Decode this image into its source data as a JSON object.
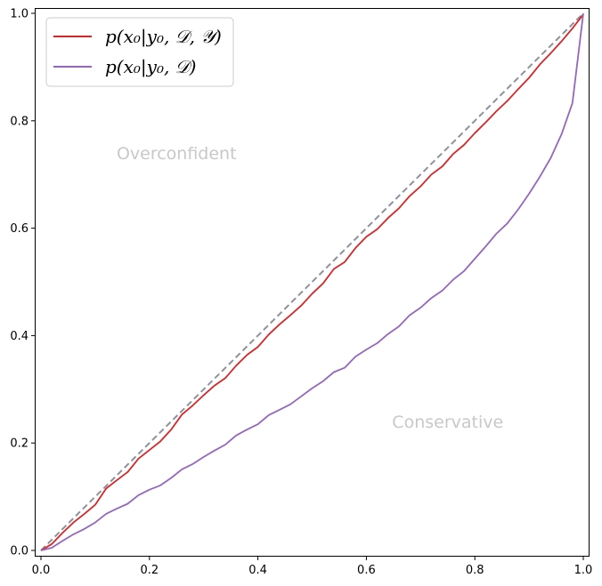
{
  "chart_data": {
    "type": "line",
    "xlim": [
      0.0,
      1.0
    ],
    "ylim": [
      0.0,
      1.0
    ],
    "grid": false,
    "legend_position": "top-left",
    "x_ticks": [
      "0.0",
      "0.2",
      "0.4",
      "0.6",
      "0.8",
      "1.0"
    ],
    "y_ticks": [
      "0.0",
      "0.2",
      "0.4",
      "0.6",
      "0.8",
      "1.0"
    ],
    "annotations": [
      {
        "text": "Overconfident",
        "x": 0.25,
        "y": 0.74
      },
      {
        "text": "Conservative",
        "x": 0.75,
        "y": 0.24
      }
    ],
    "reference_line": {
      "x": [
        0.0,
        1.0
      ],
      "y": [
        0.0,
        1.0
      ],
      "color": "#8c939b",
      "style": "dashed"
    },
    "x": [
      0.0,
      0.02,
      0.04,
      0.06,
      0.08,
      0.1,
      0.12,
      0.14,
      0.16,
      0.18,
      0.2,
      0.22,
      0.24,
      0.26,
      0.28,
      0.3,
      0.32,
      0.34,
      0.36,
      0.38,
      0.4,
      0.42,
      0.44,
      0.46,
      0.48,
      0.5,
      0.52,
      0.54,
      0.56,
      0.58,
      0.6,
      0.62,
      0.64,
      0.66,
      0.68,
      0.7,
      0.72,
      0.74,
      0.76,
      0.78,
      0.8,
      0.82,
      0.84,
      0.86,
      0.88,
      0.9,
      0.92,
      0.94,
      0.96,
      0.98,
      1.0
    ],
    "series": [
      {
        "name": "p(x₀|y₀, 𝒟, 𝒴)",
        "color": "#d62728",
        "values": [
          0.0,
          0.012,
          0.033,
          0.052,
          0.068,
          0.085,
          0.115,
          0.131,
          0.146,
          0.171,
          0.187,
          0.203,
          0.225,
          0.253,
          0.27,
          0.289,
          0.307,
          0.321,
          0.344,
          0.364,
          0.379,
          0.402,
          0.421,
          0.438,
          0.456,
          0.478,
          0.497,
          0.524,
          0.537,
          0.563,
          0.584,
          0.598,
          0.619,
          0.637,
          0.66,
          0.678,
          0.7,
          0.715,
          0.738,
          0.755,
          0.777,
          0.797,
          0.818,
          0.837,
          0.859,
          0.88,
          0.905,
          0.926,
          0.948,
          0.972,
          0.998
        ]
      },
      {
        "name": "p(x₀|y₀, 𝒟)",
        "color": "#9467bd",
        "values": [
          0.0,
          0.005,
          0.018,
          0.03,
          0.04,
          0.052,
          0.068,
          0.078,
          0.087,
          0.103,
          0.113,
          0.121,
          0.135,
          0.151,
          0.161,
          0.174,
          0.186,
          0.197,
          0.214,
          0.225,
          0.235,
          0.252,
          0.262,
          0.272,
          0.287,
          0.302,
          0.315,
          0.332,
          0.34,
          0.361,
          0.374,
          0.386,
          0.403,
          0.417,
          0.438,
          0.452,
          0.47,
          0.484,
          0.504,
          0.52,
          0.543,
          0.566,
          0.59,
          0.609,
          0.635,
          0.664,
          0.696,
          0.731,
          0.775,
          0.833,
          1.0
        ]
      }
    ]
  }
}
